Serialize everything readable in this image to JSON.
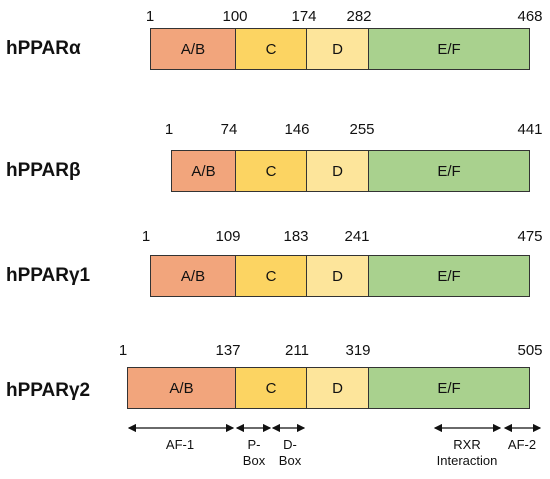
{
  "proteins": [
    {
      "name": "hPPARα",
      "boundaries": [
        "1",
        "100",
        "174",
        "282",
        "468"
      ]
    },
    {
      "name": "hPPARβ",
      "boundaries": [
        "1",
        "74",
        "146",
        "255",
        "441"
      ]
    },
    {
      "name": "hPPARγ1",
      "boundaries": [
        "1",
        "109",
        "183",
        "241",
        "475"
      ]
    },
    {
      "name": "hPPARγ2",
      "boundaries": [
        "1",
        "137",
        "211",
        "319",
        "505"
      ]
    }
  ],
  "domains": [
    "A/B",
    "C",
    "D",
    "E/F"
  ],
  "domain_colors": {
    "ab": "#f2a57c",
    "c": "#fcd462",
    "d": "#fde59b",
    "ef": "#a9d18e"
  },
  "annotations": {
    "af1": "AF-1",
    "pbox_line1": "P-",
    "pbox_line2": "Box",
    "dbox_line1": "D-",
    "dbox_line2": "Box",
    "rxr_line1": "RXR",
    "rxr_line2": "Interaction",
    "af2": "AF-2"
  }
}
